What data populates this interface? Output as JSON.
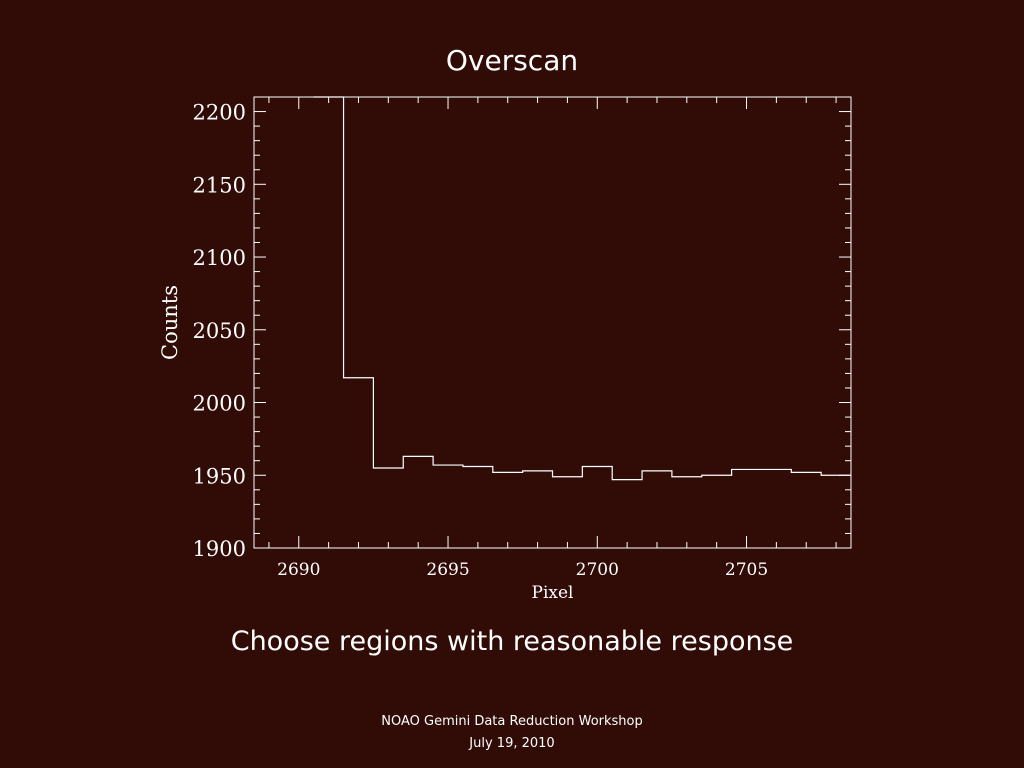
{
  "slide": {
    "title": "Overscan",
    "body_text": "Choose regions with reasonable response",
    "footer_line1": "NOAO Gemini Data Reduction Workshop",
    "footer_line2": "July 19, 2010",
    "background_color": "#310c07",
    "text_color": "#ffffff"
  },
  "chart_data": {
    "type": "line",
    "style": "histogram-step",
    "title": "",
    "xlabel": "Pixel",
    "ylabel": "Counts",
    "xlim": [
      2688.5,
      2708.5
    ],
    "ylim": [
      1900,
      2210
    ],
    "xticks": [
      2690,
      2695,
      2700,
      2705
    ],
    "yticks": [
      1900,
      1950,
      2000,
      2050,
      2100,
      2150,
      2200
    ],
    "grid": false,
    "series": [
      {
        "x": [
          2691,
          2692,
          2693,
          2694,
          2695,
          2696,
          2697,
          2698,
          2699,
          2700,
          2701,
          2702,
          2703,
          2704,
          2705,
          2706,
          2707,
          2708
        ],
        "y": [
          2210,
          2017,
          1955,
          1963,
          1957,
          1956,
          1952,
          1953,
          1949,
          1956,
          1947,
          1953,
          1949,
          1950,
          1954,
          1954,
          1952,
          1950
        ]
      }
    ]
  }
}
